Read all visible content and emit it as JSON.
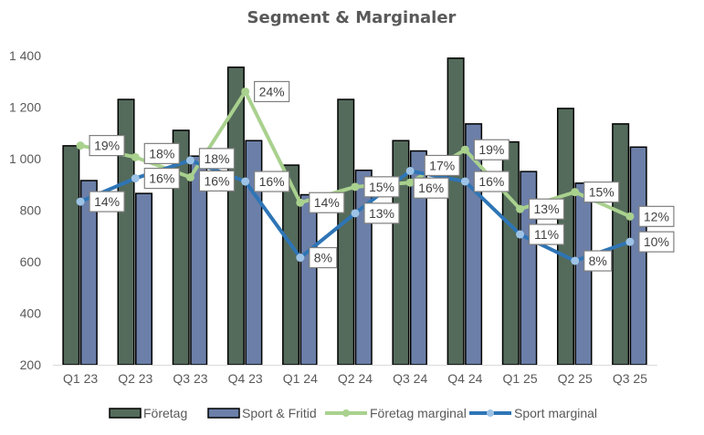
{
  "chart_data": {
    "type": "bar",
    "title": "Segment & Marginaler",
    "xlabel": "",
    "ylabel": "",
    "ylim": [
      200,
      1400
    ],
    "yticks": [
      200,
      400,
      600,
      800,
      1000,
      1200,
      1400
    ],
    "ytick_labels": [
      "200",
      "400",
      "600",
      "800",
      "1 000",
      "1 200",
      "1 400"
    ],
    "grid": false,
    "legend_position": "bottom",
    "categories": [
      "Q1 23",
      "Q2 23",
      "Q3 23",
      "Q4 23",
      "Q1 24",
      "Q2 24",
      "Q3 24",
      "Q4 24",
      "Q1 25",
      "Q2 25",
      "Q3 25"
    ],
    "series": [
      {
        "name": "Företag",
        "type": "bar",
        "color": "#546b5b",
        "values": [
          1050,
          1230,
          1110,
          1355,
          975,
          1230,
          1070,
          1390,
          1065,
          1195,
          1135
        ]
      },
      {
        "name": "Sport & Fritid",
        "type": "bar",
        "color": "#6b7fa8",
        "values": [
          915,
          865,
          1010,
          1070,
          860,
          955,
          1030,
          1135,
          950,
          905,
          1045
        ]
      },
      {
        "name": "Företag marginal",
        "type": "line",
        "axis": "secondary",
        "color": "#a9d18e",
        "marker_color": "#a9d18e",
        "values": [
          19.0,
          17.9,
          16.0,
          24.1,
          13.6,
          15.1,
          15.5,
          18.6,
          13.0,
          14.6,
          12.3
        ],
        "labels": [
          "19%",
          "18%",
          "16%",
          "24%",
          "14%",
          "15%",
          "16%",
          "19%",
          "13%",
          "15%",
          "12%"
        ]
      },
      {
        "name": "Sport marginal",
        "type": "line",
        "axis": "secondary",
        "color": "#2e75b6",
        "marker_color": "#9dc3e6",
        "values": [
          13.7,
          15.9,
          17.6,
          15.6,
          8.4,
          12.6,
          16.6,
          15.6,
          10.6,
          8.1,
          9.9
        ],
        "labels": [
          "14%",
          "16%",
          "18%",
          "16%",
          "8%",
          "13%",
          "17%",
          "16%",
          "11%",
          "8%",
          "10%"
        ]
      }
    ]
  }
}
